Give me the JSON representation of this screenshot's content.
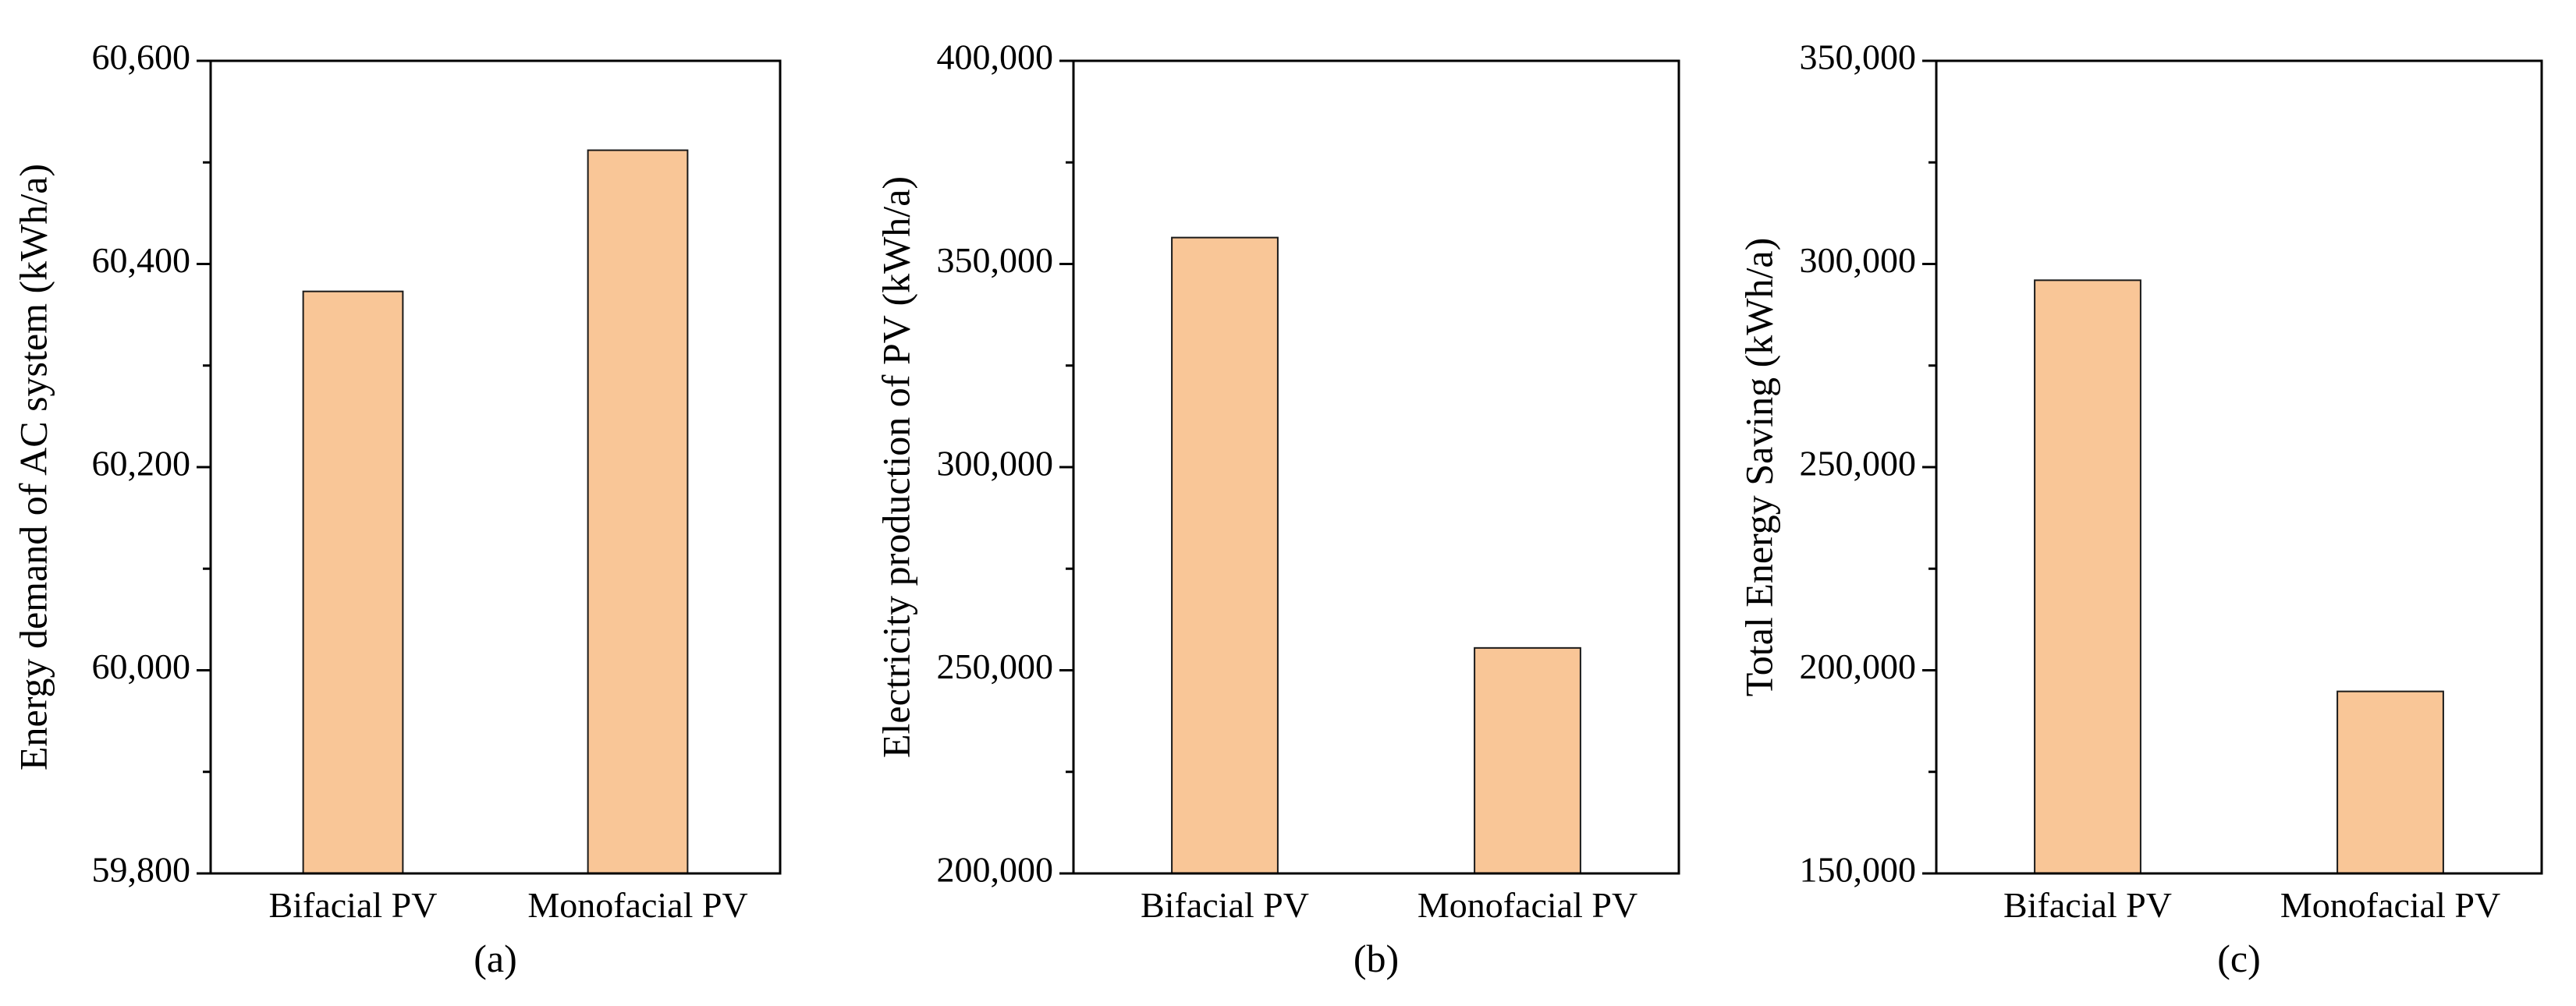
{
  "colors": {
    "bar_fill": "#f9c697",
    "bar_stroke": "#1a1a1a",
    "axis": "#000000"
  },
  "chart_data": [
    {
      "type": "bar",
      "panel_label": "(a)",
      "categories": [
        "Bifacial PV",
        "Monofacial PV"
      ],
      "values": [
        60373,
        60512
      ],
      "ylabel": "Energy demand of AC system (kWh/a)",
      "xlabel": "",
      "ylim": [
        59800,
        60600
      ],
      "yticks": [
        59800,
        60000,
        60200,
        60400,
        60600
      ],
      "ytick_labels": [
        "59,800",
        "60,000",
        "60,200",
        "60,400",
        "60,600"
      ]
    },
    {
      "type": "bar",
      "panel_label": "(b)",
      "categories": [
        "Bifacial PV",
        "Monofacial PV"
      ],
      "values": [
        356500,
        255500
      ],
      "ylabel": "Electricity production of PV (kWh/a)",
      "xlabel": "",
      "ylim": [
        200000,
        400000
      ],
      "yticks": [
        200000,
        250000,
        300000,
        350000,
        400000
      ],
      "ytick_labels": [
        "200,000",
        "250,000",
        "300,000",
        "350,000",
        "400,000"
      ]
    },
    {
      "type": "bar",
      "panel_label": "(c)",
      "categories": [
        "Bifacial PV",
        "Monofacial PV"
      ],
      "values": [
        296000,
        194800
      ],
      "ylabel": "Total Energy Saving (kWh/a)",
      "xlabel": "",
      "ylim": [
        150000,
        350000
      ],
      "yticks": [
        150000,
        200000,
        250000,
        300000,
        350000
      ],
      "ytick_labels": [
        "150,000",
        "200,000",
        "250,000",
        "300,000",
        "350,000"
      ]
    }
  ]
}
